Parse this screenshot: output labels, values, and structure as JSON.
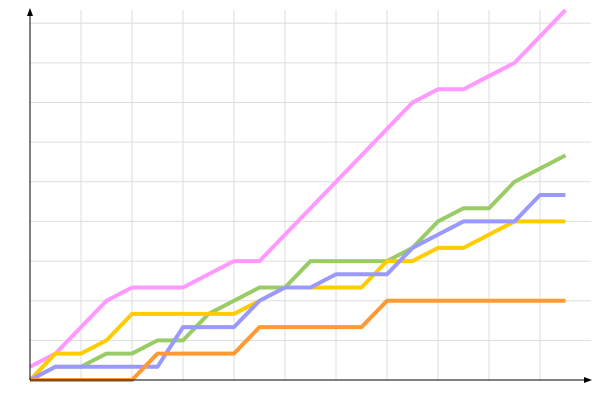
{
  "chart_data": {
    "type": "line",
    "title": "",
    "xlabel": "",
    "ylabel": "",
    "xlim": [
      0,
      22
    ],
    "ylim": [
      0,
      28
    ],
    "x_grid_step": 2,
    "y_grid_step": 3,
    "grid": true,
    "legend": "none",
    "x": [
      0,
      1,
      2,
      3,
      4,
      5,
      6,
      7,
      8,
      9,
      10,
      11,
      12,
      13,
      14,
      15,
      16,
      17,
      18,
      19,
      20,
      21
    ],
    "series": [
      {
        "color": "#ff99ff",
        "values": [
          1,
          2,
          4,
          6,
          7,
          7,
          7,
          8,
          9,
          9,
          11,
          13,
          15,
          17,
          19,
          21,
          22,
          22,
          23,
          24,
          26,
          28
        ]
      },
      {
        "color": "#99cc66",
        "values": [
          0,
          1,
          1,
          2,
          2,
          3,
          3,
          5,
          6,
          7,
          7,
          9,
          9,
          9,
          9,
          10,
          12,
          13,
          13,
          15,
          16,
          17
        ]
      },
      {
        "color": "#ffcc00",
        "values": [
          0,
          2,
          2,
          3,
          5,
          5,
          5,
          5,
          5,
          6,
          7,
          7,
          7,
          7,
          9,
          9,
          10,
          10,
          11,
          12,
          12,
          12
        ]
      },
      {
        "color": "#9999ff",
        "values": [
          0,
          1,
          1,
          1,
          1,
          1,
          4,
          4,
          4,
          6,
          7,
          7,
          8,
          8,
          8,
          10,
          11,
          12,
          12,
          12,
          14,
          14
        ]
      },
      {
        "color": "#ff9933",
        "values": [
          0,
          0,
          0,
          0,
          0,
          2,
          2,
          2,
          2,
          4,
          4,
          4,
          4,
          4,
          6,
          6,
          6,
          6,
          6,
          6,
          6,
          6
        ]
      }
    ]
  }
}
